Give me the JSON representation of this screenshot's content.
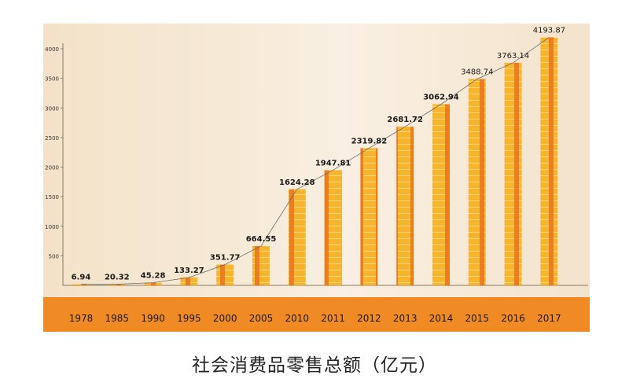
{
  "caption": "社会消费品零售总额（亿元）",
  "colors": {
    "bar_fill": "#f7b52d",
    "bar_side": "#e8731c",
    "band": "#f08a24",
    "axis": "#8a7a60",
    "trend": "#6b6b6b"
  },
  "chart_data": {
    "type": "bar",
    "title": "",
    "xlabel": "",
    "ylabel": "",
    "ylim": [
      0,
      4000
    ],
    "yticks": [
      500,
      1000,
      1500,
      2000,
      2500,
      3000,
      3500,
      4000
    ],
    "grid": false,
    "categories": [
      "1978",
      "1985",
      "1990",
      "1995",
      "2000",
      "2005",
      "2010",
      "2011",
      "2012",
      "2013",
      "2014",
      "2015",
      "2016",
      "2017"
    ],
    "values": [
      6.94,
      20.32,
      45.28,
      133.27,
      351.77,
      664.55,
      1624.28,
      1947.81,
      2319.82,
      2681.72,
      3062.94,
      3488.74,
      3763.14,
      4193.87
    ],
    "data_labels": [
      "6.94",
      "20.32",
      "45.28",
      "133.27",
      "351.77",
      "664.55",
      "1624.28",
      "1947.81",
      "2319.82",
      "2681.72",
      "3062.94",
      "3488.74",
      "3763.14",
      "4193.87"
    ],
    "trend_line": true
  }
}
